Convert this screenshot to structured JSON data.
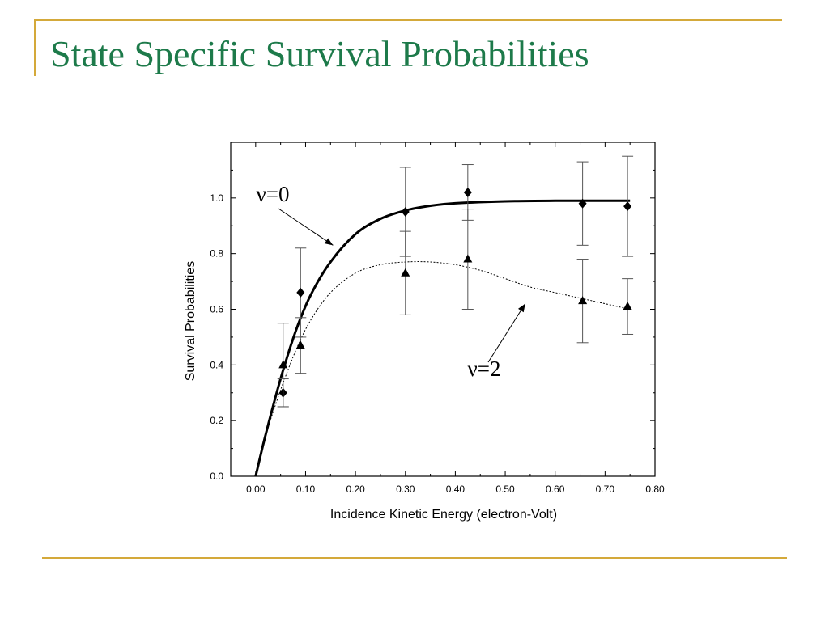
{
  "slide": {
    "title": "State Specific Survival Probabilities",
    "accent_color": "#d4a93a",
    "title_color": "#1d7a4a"
  },
  "chart_data": {
    "type": "scatter",
    "title": "",
    "xlabel": "Incidence Kinetic Energy (electron-Volt)",
    "ylabel": "Survival Probabilities",
    "xlim": [
      -0.05,
      0.8
    ],
    "ylim": [
      0.0,
      1.2
    ],
    "x_ticks": [
      0.0,
      0.1,
      0.2,
      0.3,
      0.4,
      0.5,
      0.6,
      0.7,
      0.8
    ],
    "x_tick_labels": [
      "0.00",
      "0.10",
      "0.20",
      "0.30",
      "0.40",
      "0.50",
      "0.60",
      "0.70",
      "0.80"
    ],
    "y_ticks": [
      0.0,
      0.2,
      0.4,
      0.6,
      0.8,
      1.0
    ],
    "y_tick_labels": [
      "0.0",
      "0.2",
      "0.4",
      "0.6",
      "0.8",
      "1.0"
    ],
    "grid": false,
    "legend": "none",
    "series": [
      {
        "name": "ν=0",
        "marker": "diamond",
        "points": [
          {
            "x": 0.055,
            "y": 0.3,
            "err": 0.05
          },
          {
            "x": 0.09,
            "y": 0.66,
            "err": 0.16
          },
          {
            "x": 0.3,
            "y": 0.95,
            "err": 0.16
          },
          {
            "x": 0.425,
            "y": 1.02,
            "err": 0.1
          },
          {
            "x": 0.655,
            "y": 0.98,
            "err": 0.15
          },
          {
            "x": 0.745,
            "y": 0.97,
            "err": 0.18
          }
        ],
        "fit": {
          "style": "solid",
          "points": [
            [
              0.0,
              0.0
            ],
            [
              0.02,
              0.15
            ],
            [
              0.05,
              0.35
            ],
            [
              0.08,
              0.52
            ],
            [
              0.11,
              0.65
            ],
            [
              0.15,
              0.77
            ],
            [
              0.2,
              0.87
            ],
            [
              0.25,
              0.925
            ],
            [
              0.3,
              0.955
            ],
            [
              0.35,
              0.972
            ],
            [
              0.4,
              0.981
            ],
            [
              0.5,
              0.988
            ],
            [
              0.6,
              0.99
            ],
            [
              0.75,
              0.99
            ]
          ]
        }
      },
      {
        "name": "ν=2",
        "marker": "triangle",
        "points": [
          {
            "x": 0.055,
            "y": 0.4,
            "err": 0.15
          },
          {
            "x": 0.09,
            "y": 0.47,
            "err": 0.1
          },
          {
            "x": 0.3,
            "y": 0.73,
            "err": 0.15
          },
          {
            "x": 0.425,
            "y": 0.78,
            "err": 0.18
          },
          {
            "x": 0.655,
            "y": 0.63,
            "err": 0.15
          },
          {
            "x": 0.745,
            "y": 0.61,
            "err": 0.1
          }
        ],
        "fit": {
          "style": "dotted",
          "points": [
            [
              0.02,
              0.15
            ],
            [
              0.05,
              0.31
            ],
            [
              0.08,
              0.45
            ],
            [
              0.11,
              0.56
            ],
            [
              0.15,
              0.66
            ],
            [
              0.2,
              0.73
            ],
            [
              0.25,
              0.76
            ],
            [
              0.3,
              0.77
            ],
            [
              0.35,
              0.77
            ],
            [
              0.4,
              0.76
            ],
            [
              0.45,
              0.74
            ],
            [
              0.5,
              0.71
            ],
            [
              0.55,
              0.68
            ],
            [
              0.6,
              0.66
            ],
            [
              0.65,
              0.64
            ],
            [
              0.75,
              0.6
            ]
          ]
        }
      }
    ],
    "annotations": [
      {
        "text": "ν=0",
        "arrow_to": [
          0.155,
          0.83
        ]
      },
      {
        "text": "ν=2",
        "arrow_to": [
          0.54,
          0.62
        ]
      }
    ]
  }
}
